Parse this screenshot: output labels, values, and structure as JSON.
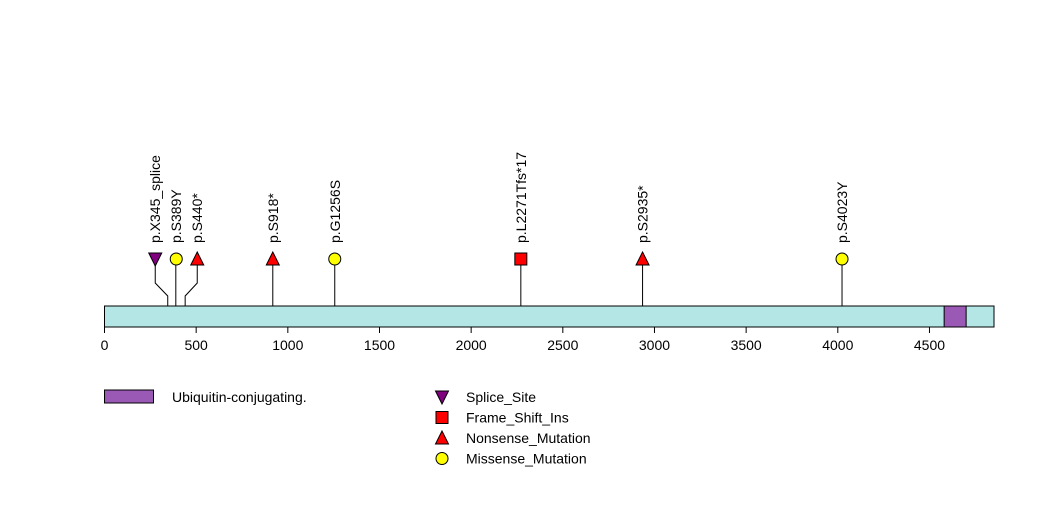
{
  "chart_data": {
    "type": "lollipop",
    "title": "",
    "xlabel": "",
    "ylabel": "",
    "protein_length": 4852,
    "xlim": [
      0,
      4852
    ],
    "x_ticks": [
      0,
      500,
      1000,
      1500,
      2000,
      2500,
      3000,
      3500,
      4000,
      4500
    ],
    "x_tick_labels": [
      "0",
      "500",
      "1000",
      "1500",
      "2000",
      "2500",
      "3000",
      "3500",
      "4000",
      "4500"
    ],
    "domains": [
      {
        "name": "Ubiquitin-conjugating.",
        "start": 4580,
        "end": 4700,
        "color": "#9b59b6"
      }
    ],
    "mutations": [
      {
        "label": "p.X345_splice",
        "position": 345,
        "type": "Splice_Site"
      },
      {
        "label": "p.S389Y",
        "position": 389,
        "type": "Missense_Mutation"
      },
      {
        "label": "p.S440*",
        "position": 440,
        "type": "Nonsense_Mutation"
      },
      {
        "label": "p.S918*",
        "position": 918,
        "type": "Nonsense_Mutation"
      },
      {
        "label": "p.G1256S",
        "position": 1256,
        "type": "Missense_Mutation"
      },
      {
        "label": "p.L2271Tfs*17",
        "position": 2271,
        "type": "Frame_Shift_Ins"
      },
      {
        "label": "p.S2935*",
        "position": 2935,
        "type": "Nonsense_Mutation"
      },
      {
        "label": "p.S4023Y",
        "position": 4023,
        "type": "Missense_Mutation"
      }
    ],
    "mutation_types": [
      {
        "name": "Splice_Site",
        "shape": "triangle-down",
        "color": "#800080"
      },
      {
        "name": "Frame_Shift_Ins",
        "shape": "square",
        "color": "#ff0000"
      },
      {
        "name": "Nonsense_Mutation",
        "shape": "triangle-up",
        "color": "#ff0000"
      },
      {
        "name": "Missense_Mutation",
        "shape": "circle",
        "color": "#ffff00"
      }
    ],
    "protein_color": "#b4e6e6",
    "legend_position": "bottom"
  }
}
